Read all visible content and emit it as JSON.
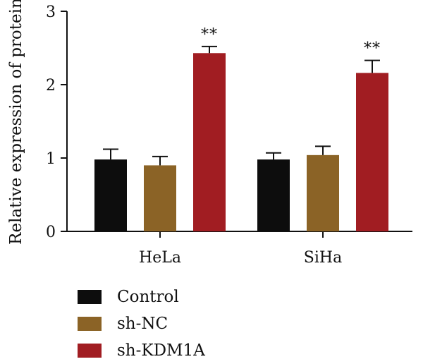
{
  "chart_data": {
    "type": "bar",
    "categories": [
      "HeLa",
      "SiHa"
    ],
    "series": [
      {
        "name": "Control",
        "values": [
          0.98,
          0.98
        ],
        "errors": [
          0.14,
          0.09
        ],
        "color": "#0d0d0d"
      },
      {
        "name": "sh-NC",
        "values": [
          0.9,
          1.04
        ],
        "errors": [
          0.12,
          0.12
        ],
        "color": "#8b6326"
      },
      {
        "name": "sh-KDM1A",
        "values": [
          2.43,
          2.16
        ],
        "errors": [
          0.09,
          0.17
        ],
        "color": "#a11d22"
      }
    ],
    "annotations": [
      {
        "category": "HeLa",
        "series": "sh-KDM1A",
        "text": "**"
      },
      {
        "category": "SiHa",
        "series": "sh-KDM1A",
        "text": "**"
      }
    ],
    "title": "",
    "xlabel": "",
    "ylabel": "Relative expression of protein",
    "ylim": [
      0,
      3
    ],
    "yticks": [
      0,
      1,
      2,
      3
    ],
    "grid": false,
    "legend_position": "bottom-left"
  }
}
